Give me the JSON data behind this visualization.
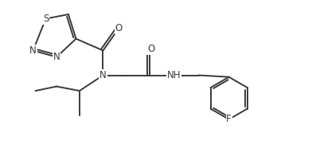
{
  "bg_color": "#ffffff",
  "line_color": "#3a3a3a",
  "text_color": "#3a3a3a",
  "figsize": [
    3.92,
    2.06
  ],
  "dpi": 100,
  "xlim": [
    0,
    9.8
  ],
  "ylim": [
    0.0,
    5.5
  ]
}
